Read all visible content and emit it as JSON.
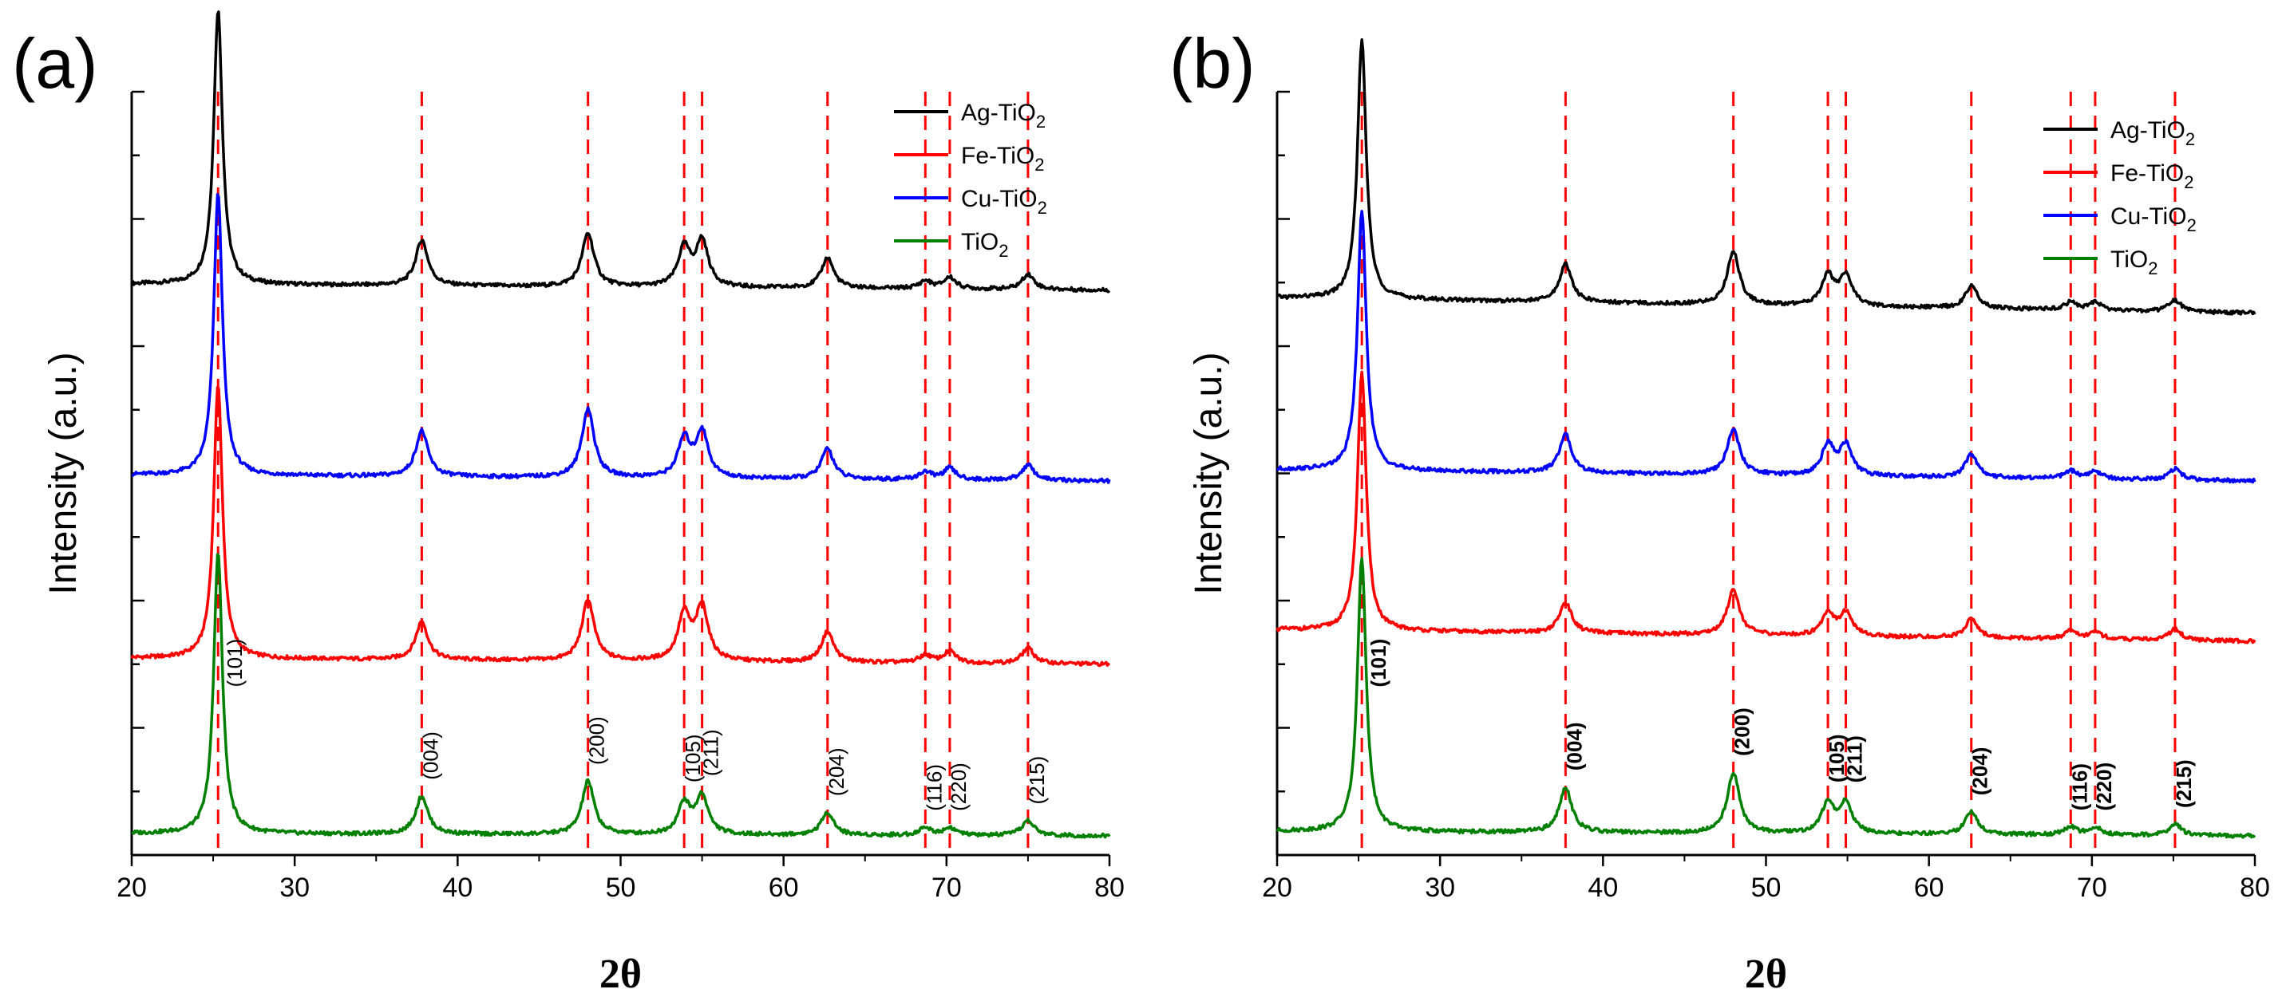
{
  "chart_data": [
    {
      "panel_label": "(a)",
      "type": "line",
      "xlabel": "2θ",
      "ylabel": "Intensity (a.u.)",
      "xlim": [
        20,
        80
      ],
      "xticks": [
        20,
        30,
        40,
        50,
        60,
        70,
        80
      ],
      "ytick_labels_shown": false,
      "legend_position": "top-right",
      "reference_lines_2theta": [
        25.3,
        37.8,
        48.0,
        53.9,
        55.0,
        62.7,
        68.7,
        70.2,
        75.0
      ],
      "peaks_2theta": [
        25.3,
        37.8,
        48.0,
        53.9,
        55.0,
        62.7,
        68.7,
        70.2,
        75.0
      ],
      "annotations": [
        "(101)",
        "(004)",
        "(200)",
        "(105)",
        "(211)",
        "(204)",
        "(116)",
        "(220)",
        "(215)"
      ],
      "series": [
        {
          "name": "Ag-TiO₂",
          "name_text": "Ag-TiO",
          "name_sub": "2",
          "color": "#000000",
          "baseline": 0.74,
          "slope": 0.008,
          "peak_heights": [
            0.36,
            0.06,
            0.07,
            0.05,
            0.06,
            0.04,
            0.01,
            0.015,
            0.02
          ]
        },
        {
          "name": "Fe-TiO₂",
          "name_text": "Fe-TiO",
          "name_sub": "2",
          "color": "#ff0000",
          "baseline": 0.25,
          "slope": 0.008,
          "peak_heights": [
            0.36,
            0.05,
            0.08,
            0.06,
            0.07,
            0.04,
            0.01,
            0.015,
            0.02
          ]
        },
        {
          "name": "Cu-TiO₂",
          "name_text": "Cu-TiO",
          "name_sub": "2",
          "color": "#0000ff",
          "baseline": 0.49,
          "slope": 0.008,
          "peak_heights": [
            0.37,
            0.06,
            0.09,
            0.05,
            0.06,
            0.04,
            0.01,
            0.015,
            0.02
          ]
        },
        {
          "name": "TiO₂",
          "name_text": "TiO",
          "name_sub": "2",
          "color": "#008000",
          "baseline": 0.025,
          "slope": 0.003,
          "peak_heights": [
            0.37,
            0.05,
            0.07,
            0.04,
            0.05,
            0.03,
            0.01,
            0.01,
            0.02
          ]
        }
      ]
    },
    {
      "panel_label": "(b)",
      "type": "line",
      "xlabel": "2θ",
      "ylabel": "Intensity (a.u.)",
      "xlim": [
        20,
        80
      ],
      "xticks": [
        20,
        30,
        40,
        50,
        60,
        70,
        80
      ],
      "ytick_labels_shown": false,
      "legend_position": "top-right",
      "reference_lines_2theta": [
        25.2,
        37.7,
        48.0,
        53.8,
        54.9,
        62.6,
        68.7,
        70.2,
        75.1
      ],
      "peaks_2theta": [
        25.2,
        37.7,
        48.0,
        53.8,
        54.9,
        62.6,
        68.7,
        70.2,
        75.1
      ],
      "annotations": [
        "(101)",
        "(004)",
        "(200)",
        "(105)",
        "(211)",
        "(204)",
        "(116)",
        "(220)",
        "(215)"
      ],
      "series": [
        {
          "name": "Ag-TiO₂",
          "name_text": "Ag-TiO",
          "name_sub": "2",
          "color": "#000000",
          "baseline": 0.71,
          "slope": 0.02,
          "peak_heights": [
            0.34,
            0.05,
            0.07,
            0.04,
            0.04,
            0.03,
            0.01,
            0.01,
            0.015
          ]
        },
        {
          "name": "Fe-TiO₂",
          "name_text": "Fe-TiO",
          "name_sub": "2",
          "color": "#ff0000",
          "baseline": 0.28,
          "slope": 0.015,
          "peak_heights": [
            0.34,
            0.04,
            0.06,
            0.03,
            0.03,
            0.025,
            0.01,
            0.01,
            0.015
          ]
        },
        {
          "name": "Cu-TiO₂",
          "name_text": "Cu-TiO",
          "name_sub": "2",
          "color": "#0000ff",
          "baseline": 0.49,
          "slope": 0.015,
          "peak_heights": [
            0.34,
            0.05,
            0.06,
            0.04,
            0.04,
            0.03,
            0.01,
            0.01,
            0.015
          ]
        },
        {
          "name": "TiO₂",
          "name_text": "TiO",
          "name_sub": "2",
          "color": "#008000",
          "baseline": 0.025,
          "slope": 0.006,
          "peak_heights": [
            0.36,
            0.06,
            0.08,
            0.04,
            0.04,
            0.03,
            0.01,
            0.01,
            0.015
          ]
        }
      ]
    }
  ]
}
